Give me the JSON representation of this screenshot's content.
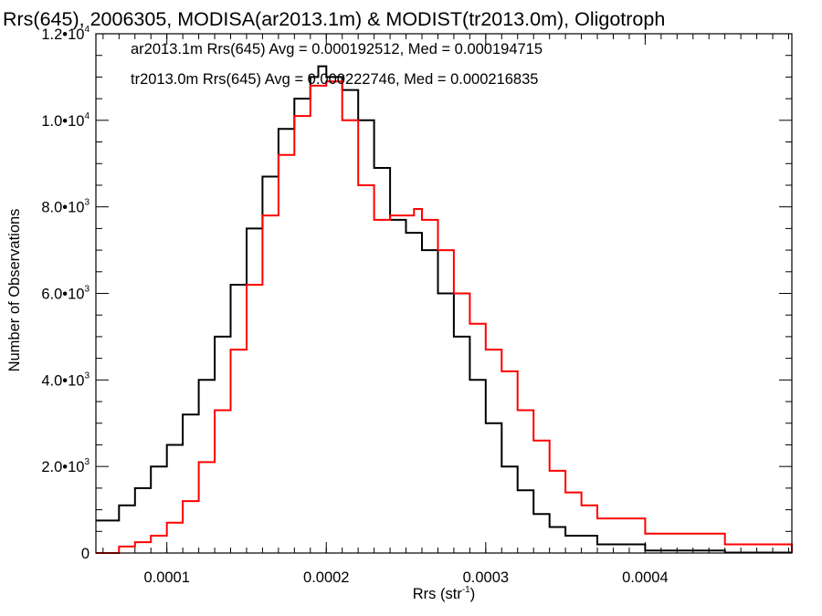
{
  "chart_data": {
    "type": "line",
    "title": "Rrs(645), 2006305, MODISA(ar2013.1m) & MODIST(tr2013.0m), Oligotroph",
    "xlabel": "Rrs (str",
    "xlabel_sup": "-1",
    "xlabel_close": ")",
    "ylabel": "Number of Observations",
    "xlim": [
      5.55e-05,
      0.000492
    ],
    "ylim": [
      0,
      12000
    ],
    "grid": false,
    "x_ticks": [
      {
        "value": 0.0001,
        "label": "0.0001"
      },
      {
        "value": 0.0002,
        "label": "0.0002"
      },
      {
        "value": 0.0003,
        "label": "0.0003"
      },
      {
        "value": 0.0004,
        "label": "0.0004"
      }
    ],
    "y_ticks": [
      {
        "value": 0,
        "mantissa": "0",
        "exp": ""
      },
      {
        "value": 2000,
        "mantissa": "2.0•10",
        "exp": "3"
      },
      {
        "value": 4000,
        "mantissa": "4.0•10",
        "exp": "3"
      },
      {
        "value": 6000,
        "mantissa": "6.0•10",
        "exp": "3"
      },
      {
        "value": 8000,
        "mantissa": "8.0•10",
        "exp": "3"
      },
      {
        "value": 10000,
        "mantissa": "1.0•10",
        "exp": "4"
      },
      {
        "value": 12000,
        "mantissa": "1.2•10",
        "exp": "4"
      }
    ],
    "annotations": [
      {
        "text": "ar2013.1m Rrs(645) Avg = 0.000192512, Med = 0.000194715",
        "color": "#000000"
      },
      {
        "text": "tr2013.0m Rrs(645) Avg = 0.000222746, Med = 0.000216835",
        "color": "#ff0000"
      }
    ],
    "series": [
      {
        "color": "#000000",
        "x": [
          5.55e-05,
          7e-05,
          8e-05,
          9e-05,
          0.0001,
          0.00011,
          0.00012,
          0.00013,
          0.00014,
          0.00015,
          0.00016,
          0.00017,
          0.00018,
          0.00019,
          0.000195,
          0.0002,
          0.00021,
          0.00022,
          0.00023,
          0.00024,
          0.00025,
          0.00026,
          0.00027,
          0.00028,
          0.00029,
          0.0003,
          0.00031,
          0.00032,
          0.00033,
          0.00034,
          0.00035,
          0.00037,
          0.0004,
          0.00045,
          0.000492
        ],
        "y": [
          750,
          1100,
          1500,
          2000,
          2500,
          3200,
          4000,
          5000,
          6200,
          7500,
          8700,
          9800,
          10500,
          11000,
          11250,
          11000,
          10700,
          10000,
          8900,
          7700,
          7400,
          7000,
          6000,
          5000,
          4000,
          3000,
          2000,
          1450,
          900,
          600,
          400,
          200,
          60,
          10,
          0
        ]
      },
      {
        "color": "#ff0000",
        "x": [
          5.55e-05,
          7e-05,
          8e-05,
          9e-05,
          0.0001,
          0.00011,
          0.00012,
          0.00013,
          0.00014,
          0.00015,
          0.00016,
          0.00017,
          0.00018,
          0.00019,
          0.0002,
          0.00021,
          0.00022,
          0.00023,
          0.00024,
          0.00025,
          0.000255,
          0.00026,
          0.00027,
          0.00028,
          0.00029,
          0.0003,
          0.00031,
          0.00032,
          0.00033,
          0.00034,
          0.00035,
          0.00036,
          0.00037,
          0.0004,
          0.00045,
          0.000492
        ],
        "y": [
          0,
          150,
          250,
          400,
          700,
          1200,
          2100,
          3300,
          4700,
          6200,
          7800,
          9200,
          10100,
          10800,
          10900,
          10000,
          8500,
          7700,
          7800,
          7800,
          7950,
          7700,
          7000,
          6000,
          5300,
          4700,
          4200,
          3300,
          2600,
          1900,
          1400,
          1100,
          800,
          450,
          200,
          0
        ]
      }
    ]
  }
}
